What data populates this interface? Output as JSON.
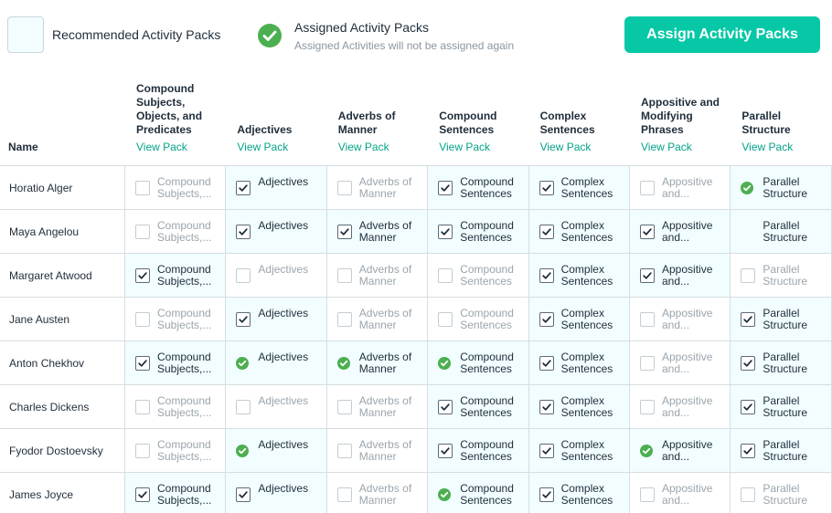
{
  "legend": {
    "recommended_label": "Recommended Activity Packs",
    "assigned_title": "Assigned Activity Packs",
    "assigned_subtitle": "Assigned Activities will not be assigned again"
  },
  "assign_button": "Assign Activity Packs",
  "colors": {
    "accent": "#06c8a6",
    "link": "#04a388",
    "assigned_green": "#4caf50",
    "recommended_bg": "#f1fdff"
  },
  "table": {
    "name_header": "Name",
    "view_pack_label": "View Pack",
    "columns": [
      {
        "title": [
          "Compound",
          "Subjects,",
          "Objects, and",
          "Predicates"
        ],
        "cell_label": [
          "Compound",
          "Subjects,..."
        ]
      },
      {
        "title": [
          "Adjectives"
        ],
        "cell_label": [
          "Adjectives"
        ]
      },
      {
        "title": [
          "Adverbs of",
          "Manner"
        ],
        "cell_label": [
          "Adverbs of",
          "Manner"
        ]
      },
      {
        "title": [
          "Compound",
          "Sentences"
        ],
        "cell_label": [
          "Compound",
          "Sentences"
        ]
      },
      {
        "title": [
          "Complex",
          "Sentences"
        ],
        "cell_label": [
          "Complex",
          "Sentences"
        ]
      },
      {
        "title": [
          "Appositive and",
          "Modifying",
          "Phrases"
        ],
        "cell_label": [
          "Appositive",
          "and..."
        ]
      },
      {
        "title": [
          "Parallel",
          "Structure"
        ],
        "cell_label": [
          "Parallel",
          "Structure"
        ]
      }
    ],
    "rows": [
      {
        "name": "Horatio Alger",
        "cells": [
          {
            "state": "empty",
            "rec": false
          },
          {
            "state": "checked",
            "rec": true
          },
          {
            "state": "empty",
            "rec": false
          },
          {
            "state": "checked",
            "rec": true
          },
          {
            "state": "checked",
            "rec": true
          },
          {
            "state": "empty",
            "rec": false
          },
          {
            "state": "assigned",
            "rec": true
          }
        ]
      },
      {
        "name": "Maya Angelou",
        "cells": [
          {
            "state": "empty",
            "rec": false
          },
          {
            "state": "checked",
            "rec": true
          },
          {
            "state": "checked",
            "rec": true
          },
          {
            "state": "checked",
            "rec": true
          },
          {
            "state": "checked",
            "rec": true
          },
          {
            "state": "checked",
            "rec": true
          },
          {
            "state": "none",
            "rec": true
          }
        ]
      },
      {
        "name": "Margaret Atwood",
        "cells": [
          {
            "state": "checked",
            "rec": true
          },
          {
            "state": "empty",
            "rec": false
          },
          {
            "state": "empty",
            "rec": false
          },
          {
            "state": "empty",
            "rec": false
          },
          {
            "state": "checked",
            "rec": true
          },
          {
            "state": "checked",
            "rec": true
          },
          {
            "state": "empty",
            "rec": false
          }
        ]
      },
      {
        "name": "Jane Austen",
        "cells": [
          {
            "state": "empty",
            "rec": false
          },
          {
            "state": "checked",
            "rec": true
          },
          {
            "state": "empty",
            "rec": false
          },
          {
            "state": "empty",
            "rec": false
          },
          {
            "state": "checked",
            "rec": true
          },
          {
            "state": "empty",
            "rec": false
          },
          {
            "state": "checked",
            "rec": true
          }
        ]
      },
      {
        "name": "Anton Chekhov",
        "cells": [
          {
            "state": "checked",
            "rec": true
          },
          {
            "state": "assigned",
            "rec": true
          },
          {
            "state": "assigned",
            "rec": true
          },
          {
            "state": "assigned",
            "rec": true
          },
          {
            "state": "checked",
            "rec": true
          },
          {
            "state": "empty",
            "rec": false
          },
          {
            "state": "checked",
            "rec": true
          }
        ]
      },
      {
        "name": "Charles Dickens",
        "cells": [
          {
            "state": "empty",
            "rec": false
          },
          {
            "state": "empty",
            "rec": false
          },
          {
            "state": "empty",
            "rec": false
          },
          {
            "state": "checked",
            "rec": true
          },
          {
            "state": "checked",
            "rec": true
          },
          {
            "state": "empty",
            "rec": false
          },
          {
            "state": "checked",
            "rec": true
          }
        ]
      },
      {
        "name": "Fyodor Dostoevsky",
        "cells": [
          {
            "state": "empty",
            "rec": false
          },
          {
            "state": "assigned",
            "rec": true
          },
          {
            "state": "empty",
            "rec": false
          },
          {
            "state": "checked",
            "rec": true
          },
          {
            "state": "checked",
            "rec": true
          },
          {
            "state": "assigned",
            "rec": true
          },
          {
            "state": "checked",
            "rec": true
          }
        ]
      },
      {
        "name": "James Joyce",
        "cells": [
          {
            "state": "checked",
            "rec": true
          },
          {
            "state": "checked",
            "rec": true
          },
          {
            "state": "empty",
            "rec": false
          },
          {
            "state": "assigned",
            "rec": true
          },
          {
            "state": "checked",
            "rec": true
          },
          {
            "state": "empty",
            "rec": false
          },
          {
            "state": "empty",
            "rec": false
          }
        ]
      }
    ]
  }
}
